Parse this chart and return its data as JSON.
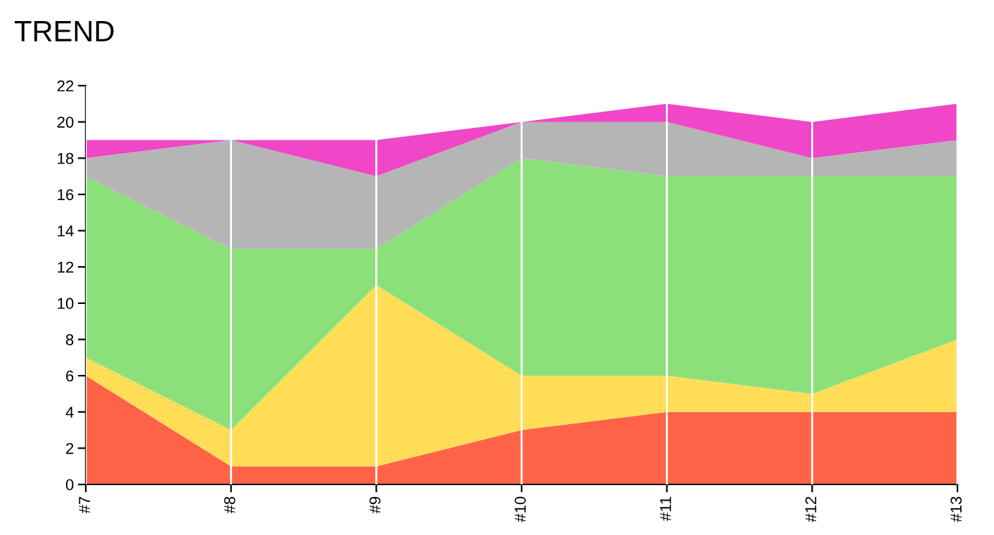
{
  "chart_data": {
    "type": "area",
    "stacked": true,
    "title": "TREND",
    "categories": [
      "#7",
      "#8",
      "#9",
      "#10",
      "#11",
      "#12",
      "#13"
    ],
    "series": [
      {
        "color": "#ff6347",
        "values": [
          6,
          1,
          1,
          3,
          4,
          4,
          4
        ]
      },
      {
        "color": "#ffdd57",
        "values": [
          1,
          2,
          10,
          3,
          2,
          1,
          4
        ]
      },
      {
        "color": "#8ce07a",
        "values": [
          10,
          10,
          2,
          12,
          11,
          12,
          9
        ]
      },
      {
        "color": "#b5b5b5",
        "values": [
          1,
          6,
          4,
          2,
          3,
          1,
          2
        ]
      },
      {
        "color": "#f046c8",
        "values": [
          1,
          0,
          2,
          0,
          1,
          2,
          2
        ]
      }
    ],
    "ylim": [
      0,
      22
    ],
    "yticks": [
      0,
      2,
      4,
      6,
      8,
      10,
      12,
      14,
      16,
      18,
      20,
      22
    ],
    "grid": "x",
    "legend": false
  }
}
